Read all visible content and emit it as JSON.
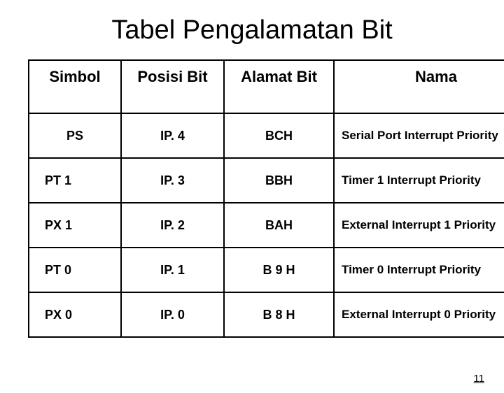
{
  "title": "Tabel Pengalamatan Bit",
  "columns": [
    "Simbol",
    "Posisi Bit",
    "Alamat Bit",
    "Nama"
  ],
  "rows": [
    {
      "simbol": "PS",
      "posisi": "IP. 4",
      "alamat": "BCH",
      "nama": "Serial Port Interrupt Priority"
    },
    {
      "simbol": "PT 1",
      "posisi": "IP. 3",
      "alamat": "BBH",
      "nama": "Timer 1  Interrupt Priority"
    },
    {
      "simbol": "PX 1",
      "posisi": "IP. 2",
      "alamat": "BAH",
      "nama": "External Interrupt 1  Priority"
    },
    {
      "simbol": "PT 0",
      "posisi": "IP. 1",
      "alamat": "B 9 H",
      "nama": "Timer 0 Interrupt Priority"
    },
    {
      "simbol": "PX 0",
      "posisi": "IP. 0",
      "alamat": "B 8 H",
      "nama": "External Interrupt 0  Priority"
    }
  ],
  "page_number": "11"
}
